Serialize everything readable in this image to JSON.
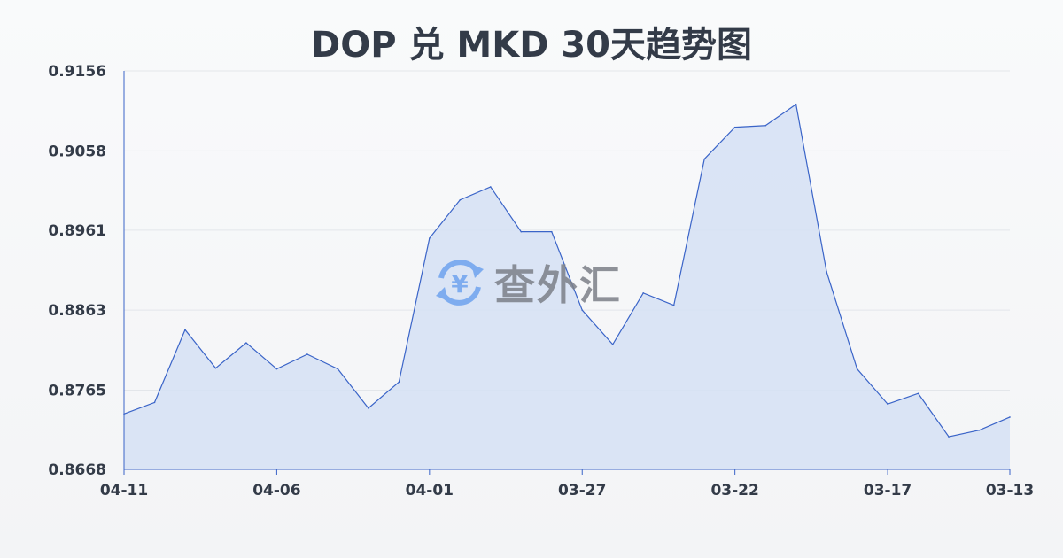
{
  "chart_data": {
    "type": "area",
    "title": "DOP 兑 MKD 30天趋势图",
    "xlabel": "",
    "ylabel": "",
    "x": [
      "04-11",
      "04-10",
      "04-09",
      "04-08",
      "04-07",
      "04-06",
      "04-05",
      "04-04",
      "04-03",
      "04-02",
      "04-01",
      "03-31",
      "03-30",
      "03-29",
      "03-28",
      "03-27",
      "03-26",
      "03-25",
      "03-24",
      "03-23",
      "03-22",
      "03-21",
      "03-20",
      "03-19",
      "03-18",
      "03-17",
      "03-16",
      "03-15",
      "03-14",
      "03-13"
    ],
    "values": [
      0.8736,
      0.875,
      0.8839,
      0.8792,
      0.8823,
      0.8791,
      0.8809,
      0.8791,
      0.8743,
      0.8775,
      0.8951,
      0.8998,
      0.9014,
      0.8959,
      0.8959,
      0.8863,
      0.8821,
      0.8884,
      0.8869,
      0.9048,
      0.9087,
      0.9089,
      0.9115,
      0.891,
      0.8791,
      0.8748,
      0.8761,
      0.8708,
      0.8716,
      0.8732
    ],
    "x_tick_labels": [
      "04-11",
      "04-06",
      "04-01",
      "03-27",
      "03-22",
      "03-17",
      "03-13"
    ],
    "y_tick_labels": [
      "0.9156",
      "0.9058",
      "0.8961",
      "0.8863",
      "0.8765",
      "0.8668"
    ],
    "ylim": [
      0.8668,
      0.9156
    ],
    "grid": true,
    "colors": {
      "line": "#3a64c8",
      "fill": "#d5e0f5",
      "grid": "#e3e6ea"
    }
  },
  "watermark": {
    "text": "查外汇",
    "icon": "yen-exchange-icon"
  }
}
